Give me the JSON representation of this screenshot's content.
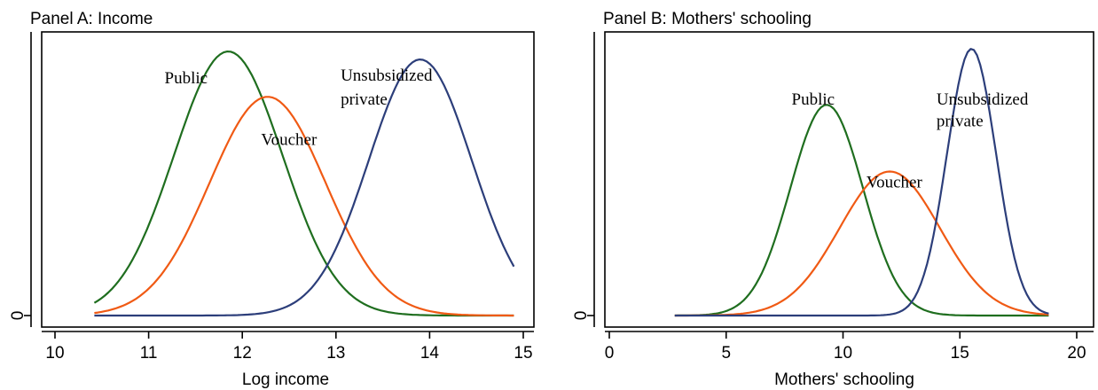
{
  "chart_data": [
    {
      "type": "line",
      "title": "Panel A: Income",
      "xlabel": "Log income",
      "ylabel": "",
      "xlim": [
        10,
        15
      ],
      "xticks": [
        10,
        11,
        12,
        13,
        14,
        15
      ],
      "yticks": [
        0
      ],
      "grid": false,
      "legend": "none",
      "series": [
        {
          "name": "Public",
          "color": "#1f6e1f",
          "mean": 11.85,
          "sd": 0.58,
          "peak": 0.99,
          "xrange": [
            10.42,
            14.9
          ]
        },
        {
          "name": "Voucher",
          "color": "#f05a14",
          "mean": 12.27,
          "sd": 0.62,
          "peak": 0.82,
          "xrange": [
            10.42,
            14.9
          ]
        },
        {
          "name": "Unsubsidized private",
          "color": "#2c3e7a",
          "mean": 13.9,
          "sd": 0.55,
          "peak": 0.96,
          "xrange": [
            10.42,
            14.9
          ]
        }
      ],
      "annotations": [
        {
          "text": "Public",
          "x": 11.17,
          "y": 0.87
        },
        {
          "text": "Unsubsidized",
          "x": 13.05,
          "y": 0.88
        },
        {
          "text": "private",
          "x": 13.05,
          "y": 0.79
        },
        {
          "text": "Voucher",
          "x": 12.2,
          "y": 0.64
        }
      ]
    },
    {
      "type": "line",
      "title": "Panel B: Mothers' schooling",
      "xlabel": "Mothers' schooling",
      "ylabel": "",
      "xlim": [
        0,
        20
      ],
      "xticks": [
        0,
        5,
        10,
        15,
        20
      ],
      "yticks": [
        0
      ],
      "grid": false,
      "legend": "none",
      "series": [
        {
          "name": "Public",
          "color": "#1f6e1f",
          "mean": 9.3,
          "sd": 1.55,
          "peak": 0.79,
          "xrange": [
            2.8,
            18.8
          ]
        },
        {
          "name": "Voucher",
          "color": "#f05a14",
          "mean": 12.0,
          "sd": 2.15,
          "peak": 0.54,
          "xrange": [
            2.8,
            18.8
          ]
        },
        {
          "name": "Unsubsidized private",
          "color": "#2c3e7a",
          "mean": 15.5,
          "sd": 1.05,
          "peak": 1.0,
          "xrange": [
            2.8,
            18.8
          ]
        }
      ],
      "annotations": [
        {
          "text": "Public",
          "x": 7.8,
          "y": 0.79
        },
        {
          "text": "Unsubsidized",
          "x": 14.0,
          "y": 0.79
        },
        {
          "text": "private",
          "x": 14.0,
          "y": 0.71
        },
        {
          "text": "Voucher",
          "x": 11.0,
          "y": 0.48
        }
      ]
    }
  ]
}
